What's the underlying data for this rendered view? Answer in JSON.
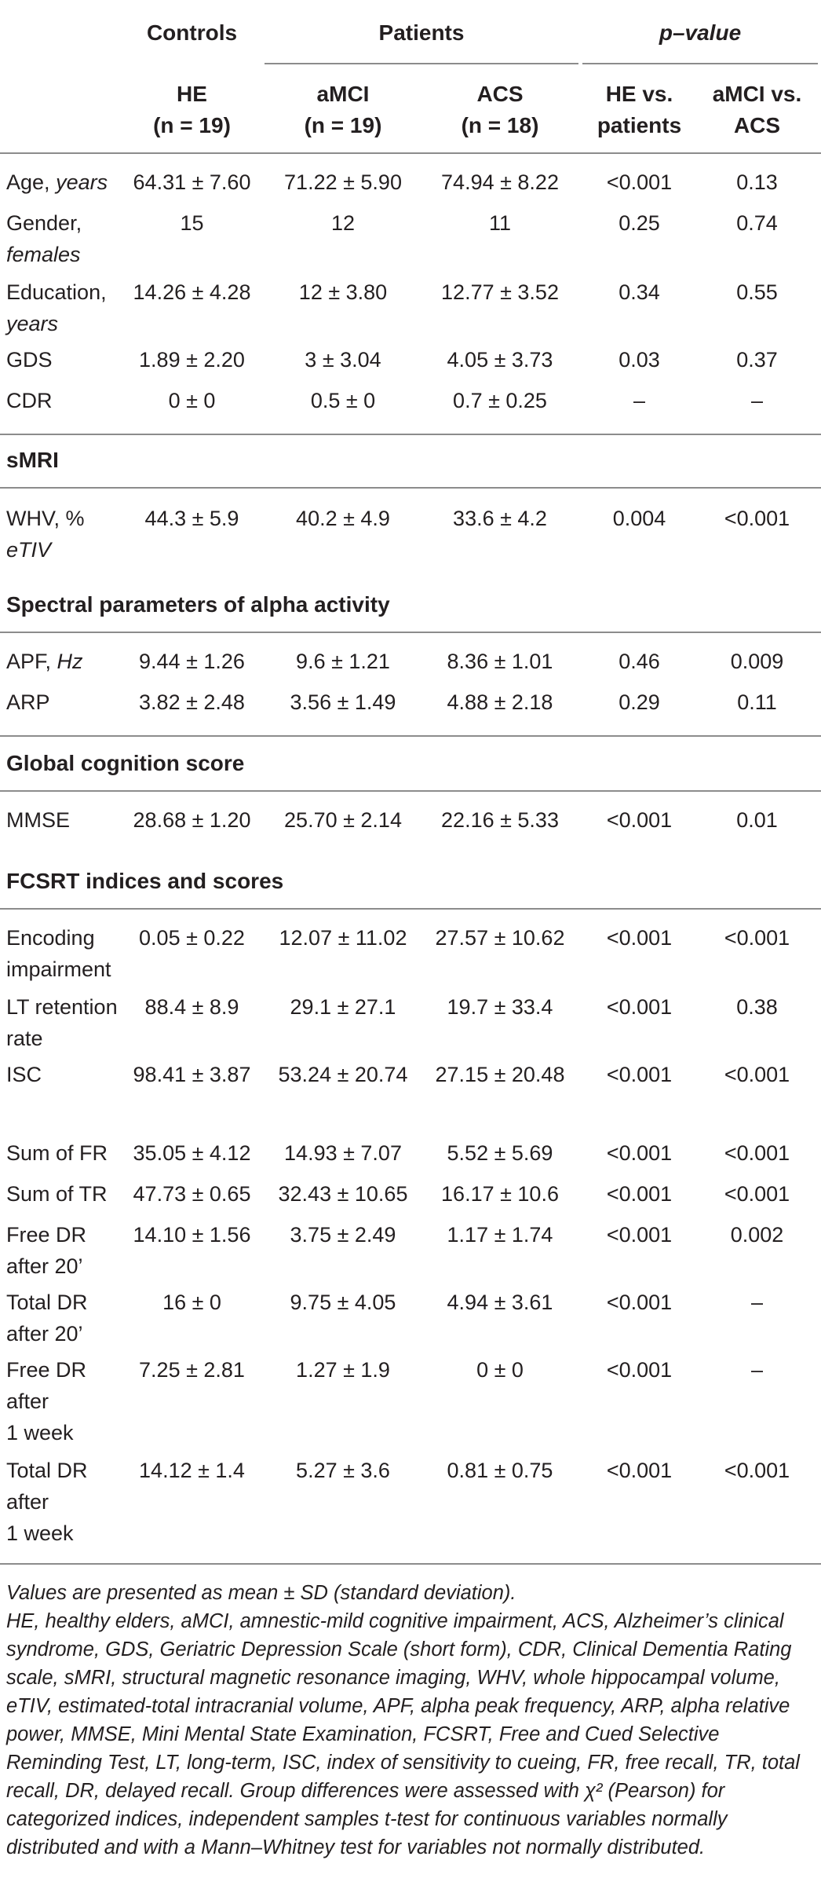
{
  "header": {
    "group_controls": "Controls",
    "group_patients": "Patients",
    "group_pvalue": "p–value",
    "col_he": "HE",
    "col_he_n": "(n = 19)",
    "col_amci": "aMCI",
    "col_amci_n": "(n = 19)",
    "col_acs": "ACS",
    "col_acs_n": "(n = 18)",
    "col_p1_line1": "HE vs.",
    "col_p1_line2": "patients",
    "col_p2_line1": "aMCI vs.",
    "col_p2_line2": "ACS"
  },
  "rows_demo": [
    {
      "label": "Age,",
      "label_it": "years",
      "he": "64.31 ± 7.60",
      "amci": "71.22 ± 5.90",
      "acs": "74.94 ± 8.22",
      "p1": "<0.001",
      "p2": "0.13"
    },
    {
      "label": "Gender,",
      "label_it": "females",
      "he": "15",
      "amci": "12",
      "acs": "11",
      "p1": "0.25",
      "p2": "0.74"
    },
    {
      "label": "Education,",
      "label_it": "years",
      "he": "14.26 ± 4.28",
      "amci": "12 ± 3.80",
      "acs": "12.77 ± 3.52",
      "p1": "0.34",
      "p2": "0.55"
    },
    {
      "label": "GDS",
      "label_it": "",
      "he": "1.89 ± 2.20",
      "amci": "3 ± 3.04",
      "acs": "4.05 ± 3.73",
      "p1": "0.03",
      "p2": "0.37"
    },
    {
      "label": "CDR",
      "label_it": "",
      "he": "0 ± 0",
      "amci": "0.5 ± 0",
      "acs": "0.7 ± 0.25",
      "p1": "–",
      "p2": "–"
    }
  ],
  "section_smri": "sMRI",
  "rows_smri": [
    {
      "label": "WHV, %",
      "label_it": "eTIV",
      "he": "44.3 ± 5.9",
      "amci": "40.2 ± 4.9",
      "acs": "33.6 ± 4.2",
      "p1": "0.004",
      "p2": "<0.001"
    }
  ],
  "section_alpha": "Spectral parameters of alpha activity",
  "rows_alpha": [
    {
      "label": "APF,",
      "label_it": "Hz",
      "he": "9.44 ± 1.26",
      "amci": "9.6 ± 1.21",
      "acs": "8.36 ± 1.01",
      "p1": "0.46",
      "p2": "0.009"
    },
    {
      "label": "ARP",
      "label_it": "",
      "he": "3.82 ± 2.48",
      "amci": "3.56 ± 1.49",
      "acs": "4.88 ± 2.18",
      "p1": "0.29",
      "p2": "0.11"
    }
  ],
  "section_global": "Global cognition score",
  "rows_global": [
    {
      "label": "MMSE",
      "label_it": "",
      "he": "28.68 ± 1.20",
      "amci": "25.70 ± 2.14",
      "acs": "22.16 ± 5.33",
      "p1": "<0.001",
      "p2": "0.01"
    }
  ],
  "section_fcsrt": "FCSRT indices and scores",
  "rows_fcsrt": [
    {
      "lines": [
        "Encoding",
        "impairment"
      ],
      "he": "0.05 ± 0.22",
      "amci": "12.07 ± 11.02",
      "acs": "27.57 ± 10.62",
      "p1": "<0.001",
      "p2": "<0.001"
    },
    {
      "lines": [
        "LT retention",
        "rate"
      ],
      "he": "88.4 ± 8.9",
      "amci": "29.1 ± 27.1",
      "acs": "19.7 ± 33.4",
      "p1": "<0.001",
      "p2": "0.38"
    },
    {
      "lines": [
        "ISC"
      ],
      "he": "98.41 ± 3.87",
      "amci": "53.24 ± 20.74",
      "acs": "27.15 ± 20.48",
      "p1": "<0.001",
      "p2": "<0.001"
    },
    {
      "lines": [
        "Sum of FR"
      ],
      "he": "35.05 ± 4.12",
      "amci": "14.93 ± 7.07",
      "acs": "5.52 ± 5.69",
      "p1": "<0.001",
      "p2": "<0.001"
    },
    {
      "lines": [
        "Sum of TR"
      ],
      "he": "47.73 ± 0.65",
      "amci": "32.43 ± 10.65",
      "acs": "16.17 ± 10.6",
      "p1": "<0.001",
      "p2": "<0.001"
    },
    {
      "lines": [
        "Free DR",
        "after 20’"
      ],
      "he": "14.10 ± 1.56",
      "amci": "3.75 ± 2.49",
      "acs": "1.17 ± 1.74",
      "p1": "<0.001",
      "p2": "0.002"
    },
    {
      "lines": [
        "Total DR",
        "after 20’"
      ],
      "he": "16 ± 0",
      "amci": "9.75 ± 4.05",
      "acs": "4.94 ± 3.61",
      "p1": "<0.001",
      "p2": "–"
    },
    {
      "lines": [
        "Free DR",
        "after",
        "1 week"
      ],
      "he": "7.25 ± 2.81",
      "amci": "1.27 ± 1.9",
      "acs": "0 ± 0",
      "p1": "<0.001",
      "p2": "–"
    },
    {
      "lines": [
        "Total DR",
        "after",
        "1 week"
      ],
      "he": "14.12 ± 1.4",
      "amci": "5.27 ± 3.6",
      "acs": "0.81 ± 0.75",
      "p1": "<0.001",
      "p2": "<0.001"
    }
  ],
  "notes": {
    "line1": "Values are presented as mean ± SD (standard deviation).",
    "line2": "HE, healthy elders, aMCI, amnestic-mild cognitive impairment, ACS, Alzheimer’s clinical syndrome, GDS, Geriatric Depression Scale (short form), CDR, Clinical Dementia Rating scale, sMRI, structural magnetic resonance imaging, WHV, whole hippocampal volume, eTIV, estimated-total intracranial volume, APF, alpha peak frequency, ARP, alpha relative power, MMSE, Mini Mental State Examination, FCSRT, Free and Cued Selective Reminding Test, LT, long-term, ISC, index of sensitivity to cueing, FR, free recall, TR, total recall, DR, delayed recall. Group differences were assessed with χ² (Pearson) for categorized indices, independent samples t-test for continuous variables normally distributed and with a Mann–Whitney test for variables not normally distributed."
  }
}
